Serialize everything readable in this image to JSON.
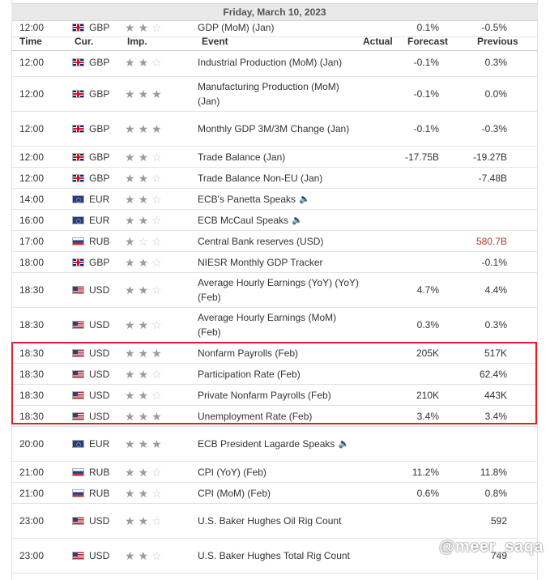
{
  "date_header": "Friday, March 10, 2023",
  "columns": {
    "time": "Time",
    "currency": "Cur.",
    "importance": "Imp.",
    "event": "Event",
    "actual": "Actual",
    "forecast": "Forecast",
    "previous": "Previous"
  },
  "rows": [
    {
      "time": "12:00",
      "flag": "gb",
      "currency": "GBP",
      "stars": 2,
      "event": "GDP (MoM) (Jan)",
      "actual": "",
      "forecast": "0.1%",
      "previous": "-0.5%"
    },
    {
      "time": "12:00",
      "flag": "gb",
      "currency": "GBP",
      "stars": 2,
      "event": "Industrial Production (MoM) (Jan)",
      "actual": "",
      "forecast": "-0.1%",
      "previous": "0.3%"
    },
    {
      "time": "12:00",
      "flag": "gb",
      "currency": "GBP",
      "stars": 3,
      "event": "Manufacturing Production (MoM) (Jan)",
      "actual": "",
      "forecast": "-0.1%",
      "previous": "0.0%"
    },
    {
      "time": "12:00",
      "flag": "gb",
      "currency": "GBP",
      "stars": 3,
      "event": "Monthly GDP 3M/3M Change (Jan)",
      "actual": "",
      "forecast": "-0.1%",
      "previous": "-0.3%"
    },
    {
      "time": "12:00",
      "flag": "gb",
      "currency": "GBP",
      "stars": 2,
      "event": "Trade Balance (Jan)",
      "actual": "",
      "forecast": "-17.75B",
      "previous": "-19.27B"
    },
    {
      "time": "12:00",
      "flag": "gb",
      "currency": "GBP",
      "stars": 2,
      "event": "Trade Balance Non-EU (Jan)",
      "actual": "",
      "forecast": "",
      "previous": "-7.48B"
    },
    {
      "time": "14:00",
      "flag": "eu",
      "currency": "EUR",
      "stars": 2,
      "event": "ECB's Panetta Speaks",
      "speaker": true,
      "actual": "",
      "forecast": "",
      "previous": ""
    },
    {
      "time": "16:00",
      "flag": "eu",
      "currency": "EUR",
      "stars": 2,
      "event": "ECB McCaul Speaks",
      "speaker": true,
      "actual": "",
      "forecast": "",
      "previous": ""
    },
    {
      "time": "17:00",
      "flag": "ru",
      "currency": "RUB",
      "stars": 1,
      "event": "Central Bank reserves (USD)",
      "actual": "",
      "forecast": "",
      "previous": "580.7B",
      "previous_red": true
    },
    {
      "time": "18:00",
      "flag": "gb",
      "currency": "GBP",
      "stars": 2,
      "event": "NIESR Monthly GDP Tracker",
      "actual": "",
      "forecast": "",
      "previous": "-0.1%"
    },
    {
      "time": "18:30",
      "flag": "us",
      "currency": "USD",
      "stars": 2,
      "event": "Average Hourly Earnings (YoY) (YoY) (Feb)",
      "actual": "",
      "forecast": "4.7%",
      "previous": "4.4%"
    },
    {
      "time": "18:30",
      "flag": "us",
      "currency": "USD",
      "stars": 2,
      "event": "Average Hourly Earnings (MoM) (Feb)",
      "actual": "",
      "forecast": "0.3%",
      "previous": "0.3%"
    },
    {
      "time": "18:30",
      "flag": "us",
      "currency": "USD",
      "stars": 3,
      "event": "Nonfarm Payrolls (Feb)",
      "actual": "",
      "forecast": "205K",
      "previous": "517K"
    },
    {
      "time": "18:30",
      "flag": "us",
      "currency": "USD",
      "stars": 2,
      "event": "Participation Rate (Feb)",
      "actual": "",
      "forecast": "",
      "previous": "62.4%"
    },
    {
      "time": "18:30",
      "flag": "us",
      "currency": "USD",
      "stars": 2,
      "event": "Private Nonfarm Payrolls (Feb)",
      "actual": "",
      "forecast": "210K",
      "previous": "443K"
    },
    {
      "time": "18:30",
      "flag": "us",
      "currency": "USD",
      "stars": 3,
      "event": "Unemployment Rate (Feb)",
      "actual": "",
      "forecast": "3.4%",
      "previous": "3.4%"
    },
    {
      "time": "20:00",
      "flag": "eu",
      "currency": "EUR",
      "stars": 3,
      "event": "ECB President Lagarde Speaks",
      "speaker": true,
      "actual": "",
      "forecast": "",
      "previous": ""
    },
    {
      "time": "21:00",
      "flag": "ru",
      "currency": "RUB",
      "stars": 2,
      "event": "CPI (YoY) (Feb)",
      "actual": "",
      "forecast": "11.2%",
      "previous": "11.8%"
    },
    {
      "time": "21:00",
      "flag": "ru",
      "currency": "RUB",
      "stars": 2,
      "event": "CPI (MoM) (Feb)",
      "actual": "",
      "forecast": "0.6%",
      "previous": "0.8%"
    },
    {
      "time": "23:00",
      "flag": "us",
      "currency": "USD",
      "stars": 2,
      "event": "U.S. Baker Hughes Oil Rig Count",
      "actual": "",
      "forecast": "",
      "previous": "592"
    },
    {
      "time": "23:00",
      "flag": "us",
      "currency": "USD",
      "stars": 2,
      "event": "U.S. Baker Hughes Total Rig Count",
      "actual": "",
      "forecast": "",
      "previous": "749"
    }
  ],
  "watermark": "@meer_saqa",
  "colors": {
    "highlight_border": "#e0202a",
    "negative_previous": "#c0392b"
  }
}
